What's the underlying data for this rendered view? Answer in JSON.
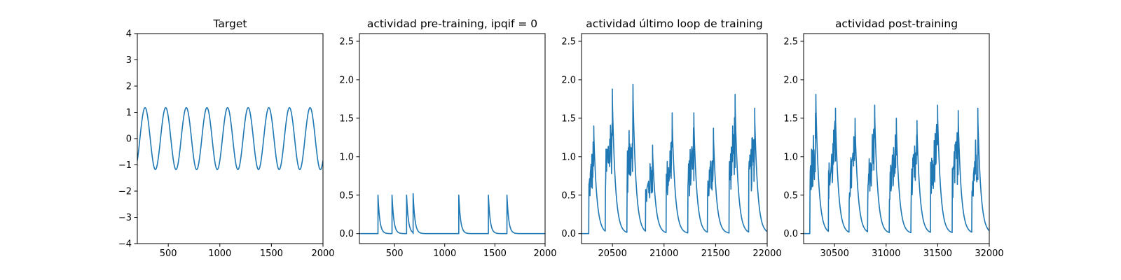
{
  "style": {
    "line_color": "#1f77b4",
    "axis_color": "#000000",
    "background": "#ffffff"
  },
  "chart_data": [
    {
      "type": "line",
      "title": "Target",
      "xlabel": "",
      "ylabel": "",
      "xlim": [
        200,
        2000
      ],
      "ylim": [
        -4,
        4
      ],
      "xticks": [
        500,
        1000,
        1500,
        2000
      ],
      "yticks": [
        -4,
        -3,
        -2,
        -1,
        0,
        1,
        2,
        3,
        4
      ],
      "grid": false,
      "series": [
        {
          "kind": "sinusoid",
          "amplitude": 1.18,
          "period": 200,
          "peak_x": 275,
          "x_start": 200,
          "x_end": 2000
        }
      ]
    },
    {
      "type": "line",
      "title": "actividad pre-training, ipqif = 0",
      "xlabel": "",
      "ylabel": "",
      "xlim": [
        150,
        2000
      ],
      "ylim": [
        -0.13,
        2.6
      ],
      "xticks": [
        500,
        1000,
        1500,
        2000
      ],
      "yticks": [
        0.0,
        0.5,
        1.0,
        1.5,
        2.0,
        2.5
      ],
      "ytick_labels": [
        "0.0",
        "0.5",
        "1.0",
        "1.5",
        "2.0",
        "2.5"
      ],
      "grid": false,
      "series": [
        {
          "kind": "spikes",
          "x_start": 150,
          "x_end": 2000,
          "tau": 18,
          "spikes": [
            [
              335,
              0.5
            ],
            [
              475,
              0.5
            ],
            [
              620,
              0.5
            ],
            [
              685,
              0.52
            ],
            [
              1140,
              0.5
            ],
            [
              1435,
              0.5
            ],
            [
              1620,
              0.5
            ]
          ]
        }
      ]
    },
    {
      "type": "line",
      "title": "actividad último loop de training",
      "xlabel": "",
      "ylabel": "",
      "xlim": [
        20200,
        22000
      ],
      "ylim": [
        -0.13,
        2.6
      ],
      "xticks": [
        20500,
        21000,
        21500,
        22000
      ],
      "yticks": [
        0.0,
        0.5,
        1.0,
        1.5,
        2.0,
        2.5
      ],
      "ytick_labels": [
        "0.0",
        "0.5",
        "1.0",
        "1.5",
        "2.0",
        "2.5"
      ],
      "grid": false,
      "series": [
        {
          "kind": "bursts",
          "x_start": 20200,
          "x_end": 22000,
          "baseline_until": 20270,
          "tau": 30,
          "bursts": [
            [
              20270,
              20320,
              1.4
            ],
            [
              20430,
              20500,
              1.88
            ],
            [
              20640,
              20700,
              1.94
            ],
            [
              20820,
              20890,
              1.15
            ],
            [
              21020,
              21080,
              1.57
            ],
            [
              21230,
              21290,
              1.57
            ],
            [
              21420,
              21480,
              1.37
            ],
            [
              21630,
              21690,
              1.81
            ],
            [
              21820,
              21880,
              1.63
            ]
          ]
        }
      ]
    },
    {
      "type": "line",
      "title": "actividad post-training",
      "xlabel": "",
      "ylabel": "",
      "xlim": [
        30200,
        32000
      ],
      "ylim": [
        -0.13,
        2.6
      ],
      "xticks": [
        30500,
        31000,
        31500,
        32000
      ],
      "yticks": [
        0.0,
        0.5,
        1.0,
        1.5,
        2.0,
        2.5
      ],
      "ytick_labels": [
        "0.0",
        "0.5",
        "1.0",
        "1.5",
        "2.0",
        "2.5"
      ],
      "grid": false,
      "series": [
        {
          "kind": "bursts",
          "x_start": 30200,
          "x_end": 32000,
          "baseline_until": 30260,
          "tau": 30,
          "bursts": [
            [
              30260,
              30320,
              1.81
            ],
            [
              30440,
              30510,
              1.63
            ],
            [
              30640,
              30700,
              1.5
            ],
            [
              30820,
              30890,
              1.67
            ],
            [
              31030,
              31100,
              1.5
            ],
            [
              31240,
              31300,
              1.47
            ],
            [
              31430,
              31500,
              1.67
            ],
            [
              31640,
              31700,
              1.6
            ],
            [
              31830,
              31890,
              1.63
            ]
          ]
        }
      ]
    }
  ]
}
